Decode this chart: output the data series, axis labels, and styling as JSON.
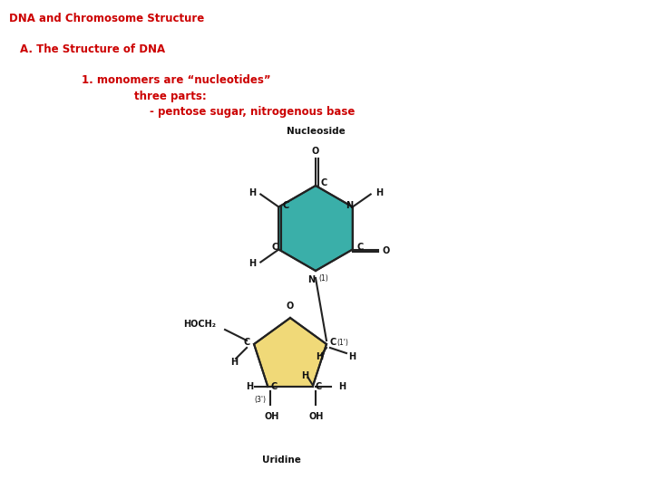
{
  "title": "DNA and Chromosome Structure",
  "line1": "A. The Structure of DNA",
  "line2": "1. monomers are “nucleotides”",
  "line3": "three parts:",
  "line4": "- pentose sugar, nitrogenous base",
  "nucleoside_label": "Nucleoside",
  "uridine_label": "Uridine",
  "text_color_red": "#cc0000",
  "text_color_black": "#111111",
  "bg_color": "#ffffff",
  "ring_color_teal": "#3aafa9",
  "ring_color_yellow": "#f0d978",
  "ring_outline": "#222222",
  "bond_color": "#222222",
  "fig_w": 7.2,
  "fig_h": 5.4,
  "dpi": 100
}
